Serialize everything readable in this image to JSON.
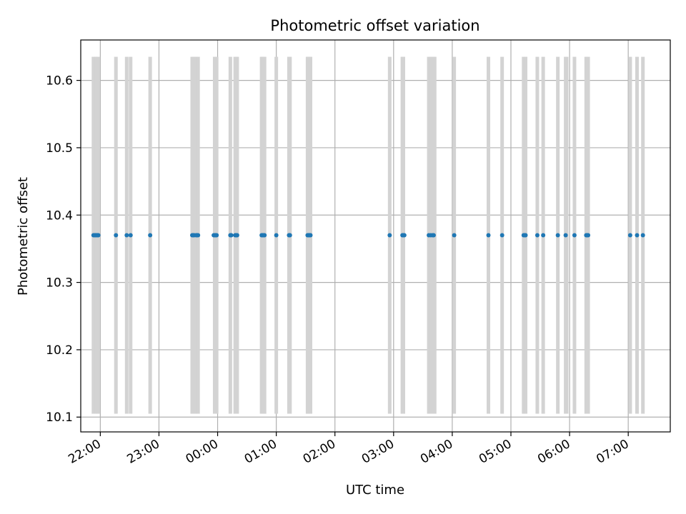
{
  "chart_data": {
    "type": "scatter",
    "title": "Photometric offset variation",
    "xlabel": "UTC time",
    "ylabel": "Photometric offset",
    "x_ticks": [
      "22:00",
      "23:00",
      "00:00",
      "01:00",
      "02:00",
      "03:00",
      "04:00",
      "05:00",
      "06:00",
      "07:00"
    ],
    "y_ticks": [
      "10.1",
      "10.2",
      "10.3",
      "10.4",
      "10.5",
      "10.6"
    ],
    "xlim": [
      "21:40",
      "07:43"
    ],
    "ylim": [
      10.078,
      10.66
    ],
    "grid": true,
    "band_range": [
      10.105,
      10.635
    ],
    "colors": {
      "points": "#1f77b4",
      "bands": "#d3d3d3",
      "grid": "#b0b0b0"
    },
    "observation_bands": [
      "21:53",
      "21:55",
      "21:56",
      "21:58",
      "22:16",
      "22:27",
      "22:31",
      "22:51",
      "23:34",
      "23:36",
      "23:38",
      "23:40",
      "23:57",
      "23:59",
      "00:13",
      "00:18",
      "00:20",
      "00:45",
      "00:46",
      "00:47",
      "00:48",
      "01:00",
      "01:13",
      "01:14",
      "01:32",
      "01:33",
      "01:34",
      "01:35",
      "02:56",
      "03:09",
      "03:10",
      "03:36",
      "03:38",
      "03:40",
      "03:42",
      "04:02",
      "04:37",
      "04:51",
      "05:13",
      "05:15",
      "05:27",
      "05:33",
      "05:48",
      "05:56",
      "05:57",
      "06:05",
      "06:17",
      "06:19",
      "07:02",
      "07:09",
      "07:15"
    ],
    "series": [
      {
        "x": [
          "21:53",
          "21:54",
          "21:55",
          "21:56",
          "21:57",
          "21:58",
          "22:16",
          "22:27",
          "22:31",
          "22:51",
          "23:34",
          "23:35",
          "23:36",
          "23:38",
          "23:39",
          "23:40",
          "23:56",
          "23:57",
          "23:58",
          "23:59",
          "00:13",
          "00:14",
          "00:18",
          "00:19",
          "00:20",
          "00:45",
          "00:46",
          "00:47",
          "00:48",
          "01:00",
          "01:13",
          "01:14",
          "01:32",
          "01:33",
          "01:34",
          "01:35",
          "02:56",
          "03:09",
          "03:10",
          "03:11",
          "03:36",
          "03:38",
          "03:40",
          "03:41",
          "04:02",
          "04:37",
          "04:51",
          "05:13",
          "05:14",
          "05:15",
          "05:27",
          "05:33",
          "05:48",
          "05:56",
          "06:05",
          "06:17",
          "06:18",
          "06:19",
          "07:02",
          "07:09",
          "07:15"
        ],
        "y": [
          10.37,
          10.37,
          10.37,
          10.37,
          10.37,
          10.37,
          10.37,
          10.37,
          10.37,
          10.37,
          10.37,
          10.37,
          10.37,
          10.37,
          10.37,
          10.37,
          10.37,
          10.37,
          10.37,
          10.37,
          10.37,
          10.37,
          10.37,
          10.37,
          10.37,
          10.37,
          10.37,
          10.37,
          10.37,
          10.37,
          10.37,
          10.37,
          10.37,
          10.37,
          10.37,
          10.37,
          10.37,
          10.37,
          10.37,
          10.37,
          10.37,
          10.37,
          10.37,
          10.37,
          10.37,
          10.37,
          10.37,
          10.37,
          10.37,
          10.37,
          10.37,
          10.37,
          10.37,
          10.37,
          10.37,
          10.37,
          10.37,
          10.37,
          10.37,
          10.37,
          10.37
        ]
      }
    ]
  }
}
